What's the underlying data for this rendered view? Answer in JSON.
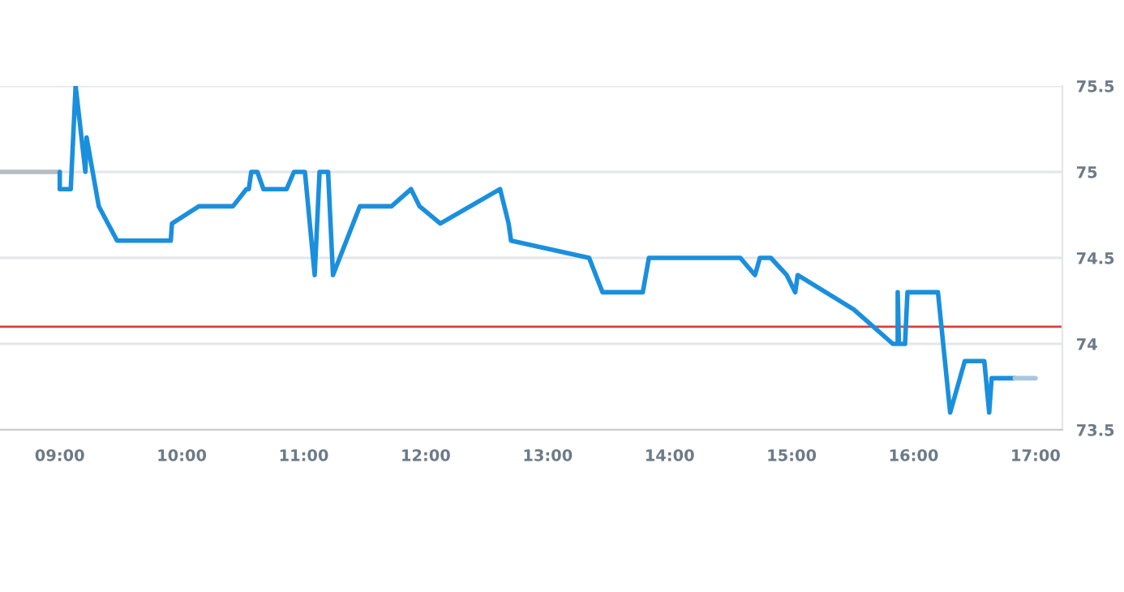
{
  "chart_data": {
    "type": "line",
    "xlim": [
      8.51,
      17.22
    ],
    "xticks": [
      {
        "value": 9,
        "label": "09:00"
      },
      {
        "value": 10,
        "label": "10:00"
      },
      {
        "value": 11,
        "label": "11:00"
      },
      {
        "value": 12,
        "label": "12:00"
      },
      {
        "value": 13,
        "label": "13:00"
      },
      {
        "value": 14,
        "label": "14:00"
      },
      {
        "value": 15,
        "label": "15:00"
      },
      {
        "value": 16,
        "label": "16:00"
      },
      {
        "value": 17,
        "label": "17:00"
      }
    ],
    "ylim": [
      73.5,
      75.5
    ],
    "yticks": [
      73.5,
      74,
      74.5,
      75,
      75.5
    ],
    "grid": "y",
    "marker": "none",
    "line_style": "solid",
    "ref_lines": [
      {
        "axis": "y",
        "value": 74.1,
        "color": "#d9413a"
      }
    ],
    "series": [
      {
        "color": "#b4bcc4",
        "x": [
          8.51,
          9.0
        ],
        "values": [
          75.0,
          75.0
        ]
      },
      {
        "color": "#1a8fde",
        "x": [
          9.0,
          9.0,
          9.09,
          9.13,
          9.21,
          9.22,
          9.32,
          9.47,
          9.91,
          9.92,
          10.14,
          10.42,
          10.53,
          10.55,
          10.57,
          10.62,
          10.67,
          10.86,
          10.92,
          11.01,
          11.09,
          11.13,
          11.2,
          11.24,
          11.46,
          11.72,
          11.88,
          11.95,
          12.12,
          12.61,
          12.68,
          12.7,
          13.34,
          13.45,
          13.78,
          13.83,
          14.58,
          14.7,
          14.74,
          14.83,
          14.96,
          15.03,
          15.05,
          15.51,
          15.83,
          15.87,
          15.87,
          15.88,
          15.93,
          15.95,
          16.2,
          16.3,
          16.42,
          16.58,
          16.62,
          16.64,
          16.83
        ],
        "values": [
          75.0,
          74.9,
          74.9,
          75.5,
          75.0,
          75.2,
          74.8,
          74.6,
          74.6,
          74.7,
          74.8,
          74.8,
          74.9,
          74.9,
          75.0,
          75.0,
          74.9,
          74.9,
          75.0,
          75.0,
          74.4,
          75.0,
          75.0,
          74.4,
          74.8,
          74.8,
          74.9,
          74.8,
          74.7,
          74.9,
          74.7,
          74.6,
          74.5,
          74.3,
          74.3,
          74.5,
          74.5,
          74.4,
          74.5,
          74.5,
          74.4,
          74.3,
          74.4,
          74.2,
          74.0,
          74.0,
          74.3,
          74.0,
          74.0,
          74.3,
          74.3,
          73.6,
          73.9,
          73.9,
          73.6,
          73.8,
          73.8
        ]
      },
      {
        "color": "#a9c6dc",
        "x": [
          16.83,
          17.0
        ],
        "values": [
          73.8,
          73.8
        ]
      }
    ]
  }
}
